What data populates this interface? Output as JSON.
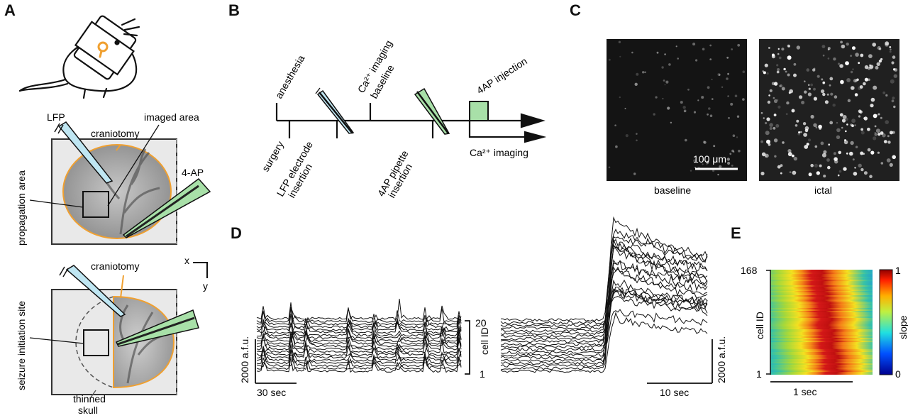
{
  "panels": {
    "A": {
      "letter": "A",
      "labels": {
        "lfp": "LFP",
        "craniotomy_top": "craniotomy",
        "imaged_area": "imaged area",
        "agent": "4-AP",
        "propagation_area": "propagation area",
        "axis_x": "x",
        "axis_y": "y",
        "craniotomy_bottom": "craniotomy",
        "seizure_site": "seizure initiation site",
        "thinned_skull_1": "thinned",
        "thinned_skull_2": "skull"
      }
    },
    "B": {
      "letter": "B",
      "events_above": [
        "anesthesia",
        "Ca²⁺ imaging",
        "baseline",
        "4AP injection"
      ],
      "events_below": [
        "surgery",
        "LFP electrode",
        "insertion",
        "4AP pipette",
        "insertion"
      ],
      "imaging_label": "Ca²⁺ imaging",
      "accent_color": "#a8e0a8"
    },
    "C": {
      "letter": "C",
      "left_caption": "baseline",
      "right_caption": "ictal",
      "scale_bar": "100 μm"
    },
    "D": {
      "letter": "D",
      "left_scale_y": "2000 a.f.u.",
      "left_scale_x": "30 sec",
      "cell_id_label": "cell ID",
      "cell_id_top": "20",
      "cell_id_bottom": "1",
      "right_scale_y": "2000 a.f.u.",
      "right_scale_x": "10 sec"
    },
    "E": {
      "letter": "E",
      "ylabel": "cell ID",
      "y_top": "168",
      "y_bottom": "1",
      "x_scale": "1 sec",
      "colorbar_label": "slope",
      "colorbar_top": "1",
      "colorbar_bottom": "0"
    }
  },
  "colors": {
    "orange": "#f0a030",
    "green": "#a8e0a8",
    "lfp_blue": "#bfe6f2"
  }
}
